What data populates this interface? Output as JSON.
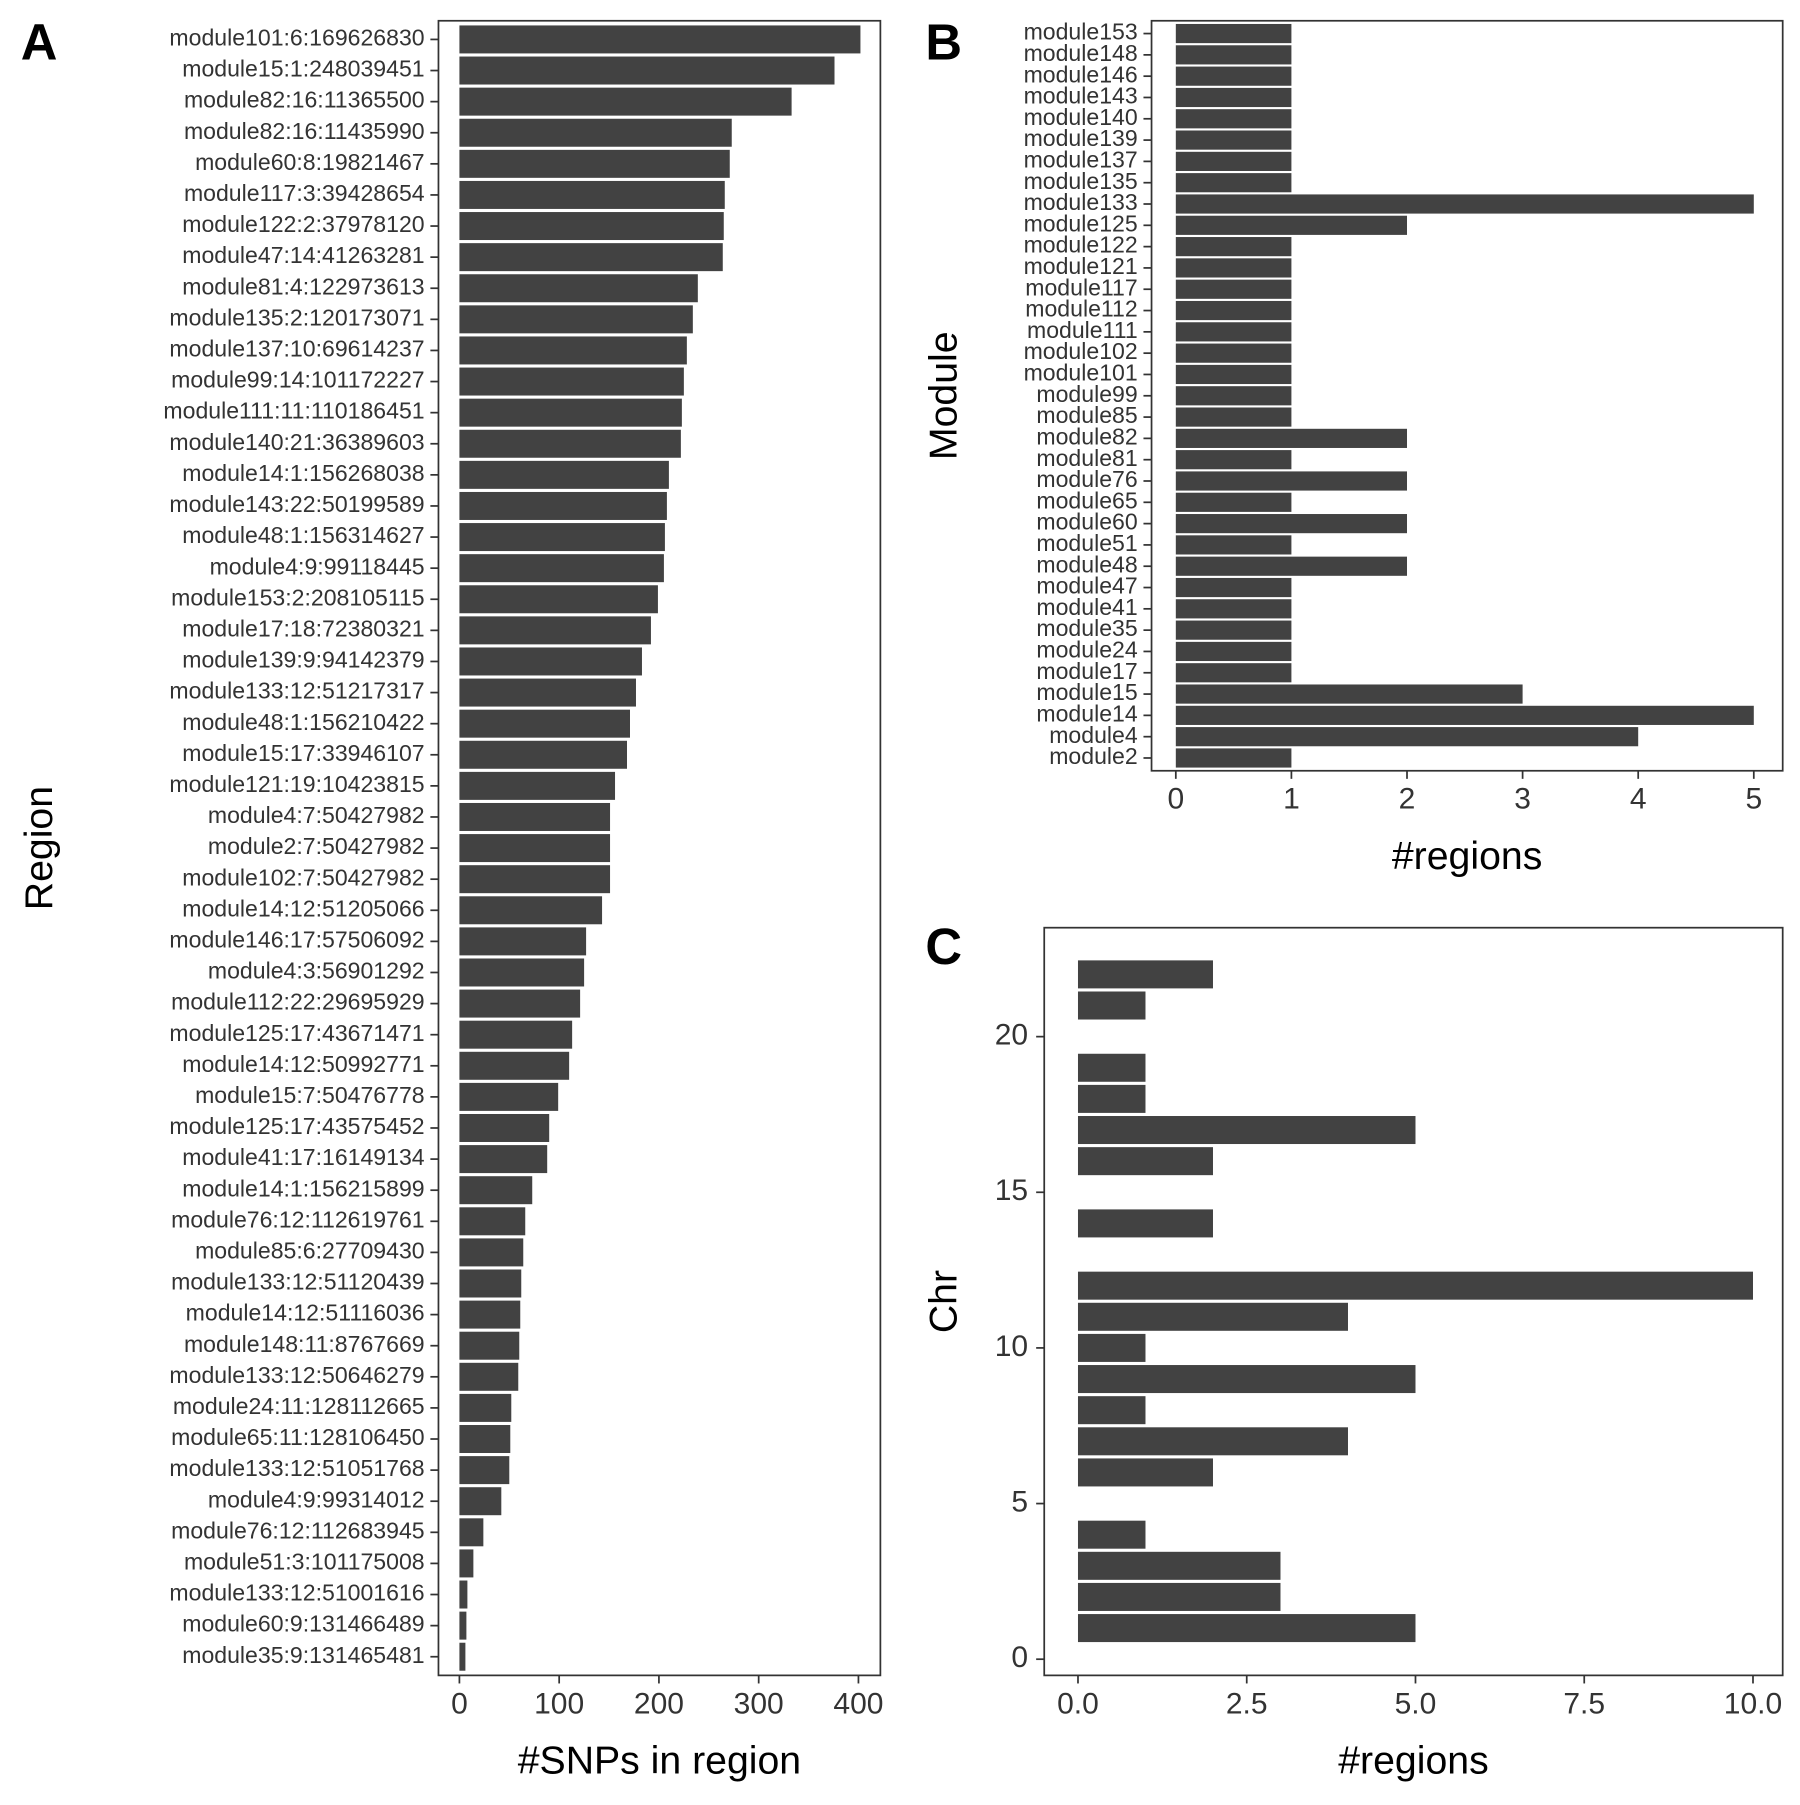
{
  "chart_data": [
    {
      "type": "bar",
      "orientation": "horizontal",
      "panel_label": "A",
      "x_label": "#SNPs in region",
      "y_label": "Region",
      "color": "#424242",
      "categories": [
        "module101:6:169626830",
        "module15:1:248039451",
        "module82:16:11365500",
        "module82:16:11435990",
        "module60:8:19821467",
        "module117:3:39428654",
        "module122:2:37978120",
        "module47:14:41263281",
        "module81:4:122973613",
        "module135:2:120173071",
        "module137:10:69614237",
        "module99:14:101172227",
        "module111:11:110186451",
        "module140:21:36389603",
        "module14:1:156268038",
        "module143:22:50199589",
        "module48:1:156314627",
        "module4:9:99118445",
        "module153:2:208105115",
        "module17:18:72380321",
        "module139:9:94142379",
        "module133:12:51217317",
        "module48:1:156210422",
        "module15:17:33946107",
        "module121:19:10423815",
        "module4:7:50427982",
        "module2:7:50427982",
        "module102:7:50427982",
        "module14:12:51205066",
        "module146:17:57506092",
        "module4:3:56901292",
        "module112:22:29695929",
        "module125:17:43671471",
        "module14:12:50992771",
        "module15:7:50476778",
        "module125:17:43575452",
        "module41:17:16149134",
        "module14:1:156215899",
        "module76:12:112619761",
        "module85:6:27709430",
        "module133:12:51120439",
        "module14:12:51116036",
        "module148:11:8767669",
        "module133:12:50646279",
        "module24:11:128112665",
        "module65:11:128106450",
        "module133:12:51051768",
        "module4:9:99314012",
        "module76:12:112683945",
        "module51:3:101175008",
        "module133:12:51001616",
        "module60:9:131466489",
        "module35:9:131465481"
      ],
      "values": [
        402,
        376,
        333,
        273,
        271,
        266,
        265,
        264,
        239,
        234,
        228,
        225,
        223,
        222,
        210,
        208,
        206,
        205,
        199,
        192,
        183,
        177,
        171,
        168,
        156,
        151,
        151,
        151,
        143,
        127,
        125,
        121,
        113,
        110,
        99,
        90,
        88,
        73,
        66,
        64,
        62,
        61,
        60,
        59,
        52,
        51,
        50,
        42,
        24,
        14,
        8,
        7,
        6
      ],
      "xlim": [
        -21,
        422
      ],
      "xticks": [
        0,
        100,
        200,
        300,
        400
      ]
    },
    {
      "type": "bar",
      "orientation": "horizontal",
      "panel_label": "B",
      "x_label": "#regions",
      "y_label": "Module",
      "color": "#424242",
      "categories": [
        "module153",
        "module148",
        "module146",
        "module143",
        "module140",
        "module139",
        "module137",
        "module135",
        "module133",
        "module125",
        "module122",
        "module121",
        "module117",
        "module112",
        "module111",
        "module102",
        "module101",
        "module99",
        "module85",
        "module82",
        "module81",
        "module76",
        "module65",
        "module60",
        "module51",
        "module48",
        "module47",
        "module41",
        "module35",
        "module24",
        "module17",
        "module15",
        "module14",
        "module4",
        "module2"
      ],
      "values": [
        1,
        1,
        1,
        1,
        1,
        1,
        1,
        1,
        5,
        2,
        1,
        1,
        1,
        1,
        1,
        1,
        1,
        1,
        1,
        2,
        1,
        2,
        1,
        2,
        1,
        2,
        1,
        1,
        1,
        1,
        1,
        3,
        5,
        4,
        1
      ],
      "xlim": [
        -0.21,
        5.25
      ],
      "xticks": [
        0,
        1,
        2,
        3,
        4,
        5
      ]
    },
    {
      "type": "bar",
      "orientation": "horizontal",
      "panel_label": "C",
      "x_label": "#regions",
      "y_label": "Chr",
      "color": "#424242",
      "y": [
        1,
        2,
        3,
        4,
        6,
        7,
        8,
        9,
        10,
        11,
        12,
        14,
        16,
        17,
        18,
        19,
        21,
        22
      ],
      "values": [
        5,
        3,
        3,
        1,
        2,
        4,
        1,
        5,
        1,
        4,
        10,
        2,
        2,
        5,
        1,
        1,
        1,
        2
      ],
      "xlim": [
        -0.5,
        10.44
      ],
      "xticks": [
        {
          "value": 0,
          "label": "0.0"
        },
        2.5,
        {
          "value": 5,
          "label": "5.0"
        },
        7.5,
        {
          "value": 10,
          "label": "10.0"
        }
      ],
      "ylim": [
        -0.52,
        23.5
      ],
      "yticks": [
        0,
        5,
        10,
        15,
        20
      ]
    }
  ]
}
